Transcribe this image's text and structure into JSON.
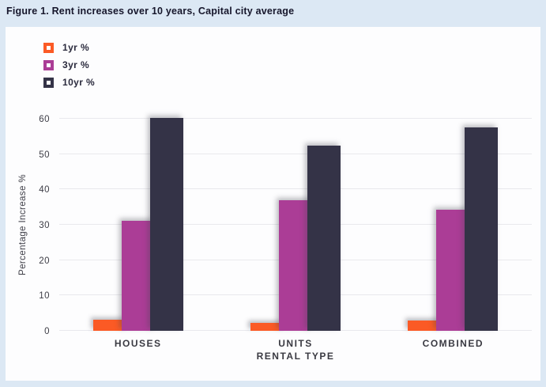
{
  "title": "Figure 1. Rent increases over 10 years, Capital city average",
  "colors": {
    "page_background": "#dce8f4",
    "panel_background": "#fdfdfe",
    "series_1yr": "#fb5a25",
    "series_3yr": "#ab3d96",
    "series_10yr": "#343347",
    "gridline": "#e9e9ed",
    "title_text": "#16162b",
    "axis_text": "#3d3d46"
  },
  "legend": {
    "items": [
      {
        "label": "1yr %",
        "color": "#fb5a25",
        "marker": "square-outline-icon"
      },
      {
        "label": "3yr %",
        "color": "#ab3d96",
        "marker": "square-outline-icon"
      },
      {
        "label": "10yr %",
        "color": "#343347",
        "marker": "square-outline-icon"
      }
    ]
  },
  "chart_data": {
    "type": "bar",
    "title": "Figure 1. Rent increases over 10 years, Capital city average",
    "categories": [
      "HOUSES",
      "UNITS",
      "COMBINED"
    ],
    "series": [
      {
        "name": "1yr %",
        "color": "#fb5a25",
        "values": [
          3.2,
          2.2,
          3.0
        ]
      },
      {
        "name": "3yr %",
        "color": "#ab3d96",
        "values": [
          31.2,
          37.0,
          34.2
        ]
      },
      {
        "name": "10yr %",
        "color": "#343347",
        "values": [
          60.2,
          52.5,
          57.5
        ]
      }
    ],
    "xlabel": "RENTAL TYPE",
    "ylabel": "Percentage Increase %",
    "yticks": [
      0,
      10,
      20,
      30,
      40,
      50,
      60
    ],
    "ylim": [
      0,
      60
    ],
    "grid": true,
    "legend_position": "top-left"
  }
}
